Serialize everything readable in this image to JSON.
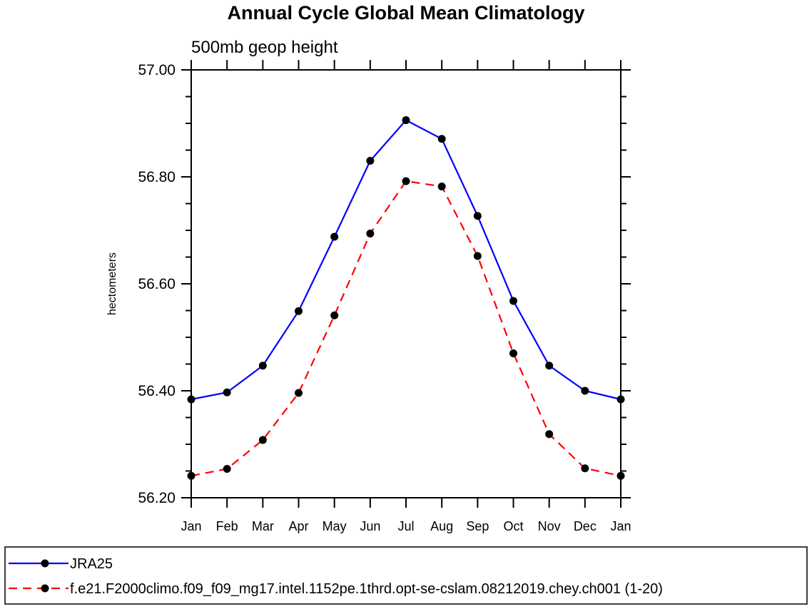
{
  "chart_data": {
    "type": "line",
    "title": "Annual Cycle Global Mean Climatology",
    "subtitle": "500mb geop height",
    "xlabel": "",
    "ylabel": "hectometers",
    "categories": [
      "Jan",
      "Feb",
      "Mar",
      "Apr",
      "May",
      "Jun",
      "Jul",
      "Aug",
      "Sep",
      "Oct",
      "Nov",
      "Dec",
      "Jan"
    ],
    "ylim": [
      56.2,
      57.0
    ],
    "yticks": [
      56.2,
      56.4,
      56.6,
      56.8,
      57.0
    ],
    "ytick_labels": [
      "56.20",
      "56.40",
      "56.60",
      "56.80",
      "57.00"
    ],
    "yminor_step": 0.05,
    "grid": false,
    "legend_position": "bottom",
    "series": [
      {
        "name": "JRA25",
        "color": "#0000ff",
        "dash": "solid",
        "marker": "circle",
        "values": [
          56.384,
          56.397,
          56.447,
          56.549,
          56.688,
          56.83,
          56.906,
          56.871,
          56.727,
          56.568,
          56.447,
          56.4,
          56.384
        ]
      },
      {
        "name": "f.e21.F2000climo.f09_f09_mg17.intel.1152pe.1thrd.opt-se-cslam.08212019.chey.ch001 (1-20)",
        "color": "#ff0000",
        "dash": "dashed",
        "marker": "circle",
        "values": [
          56.241,
          56.254,
          56.308,
          56.396,
          56.541,
          56.694,
          56.792,
          56.782,
          56.652,
          56.47,
          56.319,
          56.255,
          56.241
        ]
      }
    ]
  }
}
